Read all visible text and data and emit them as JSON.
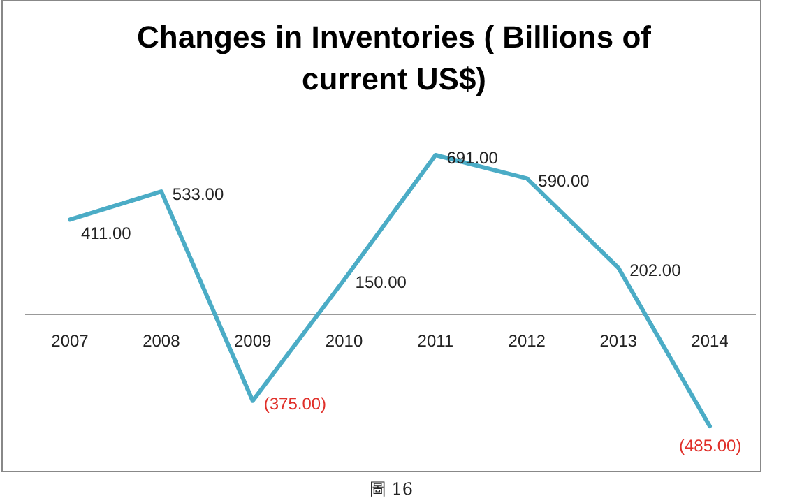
{
  "chart_data": {
    "type": "line",
    "title": "Changes in Inventories ( Billions of current US$)",
    "categories": [
      "2007",
      "2008",
      "2009",
      "2010",
      "2011",
      "2012",
      "2013",
      "2014"
    ],
    "values": [
      411,
      533,
      -375,
      150,
      691,
      590,
      202,
      -485
    ],
    "value_labels": [
      "411.00",
      "533.00",
      "(375.00)",
      "150.00",
      "691.00",
      "590.00",
      "202.00",
      "(485.00)"
    ],
    "color": "#4bacc6",
    "annotations": [
      "圖 16"
    ]
  }
}
